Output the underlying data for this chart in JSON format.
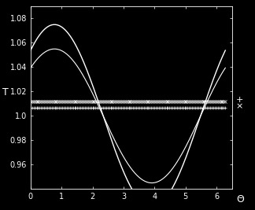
{
  "background_color": "#000000",
  "text_color": "#ffffff",
  "ylabel": "T",
  "xlabel": "Θ",
  "xlim": [
    0,
    6.5
  ],
  "ylim": [
    0.94,
    1.09
  ],
  "yticks": [
    0.96,
    0.98,
    1.0,
    1.02,
    1.04,
    1.06,
    1.08
  ],
  "xticks": [
    0,
    1,
    2,
    3,
    4,
    5,
    6
  ],
  "line_color": "#ffffff",
  "marker_color": "#ffffff",
  "amplitude_large": 0.075,
  "amplitude_small": 0.055,
  "phase_shift": 0.8,
  "flat_value_plus": 1.007,
  "flat_value_cross": 1.012,
  "num_markers": 130
}
